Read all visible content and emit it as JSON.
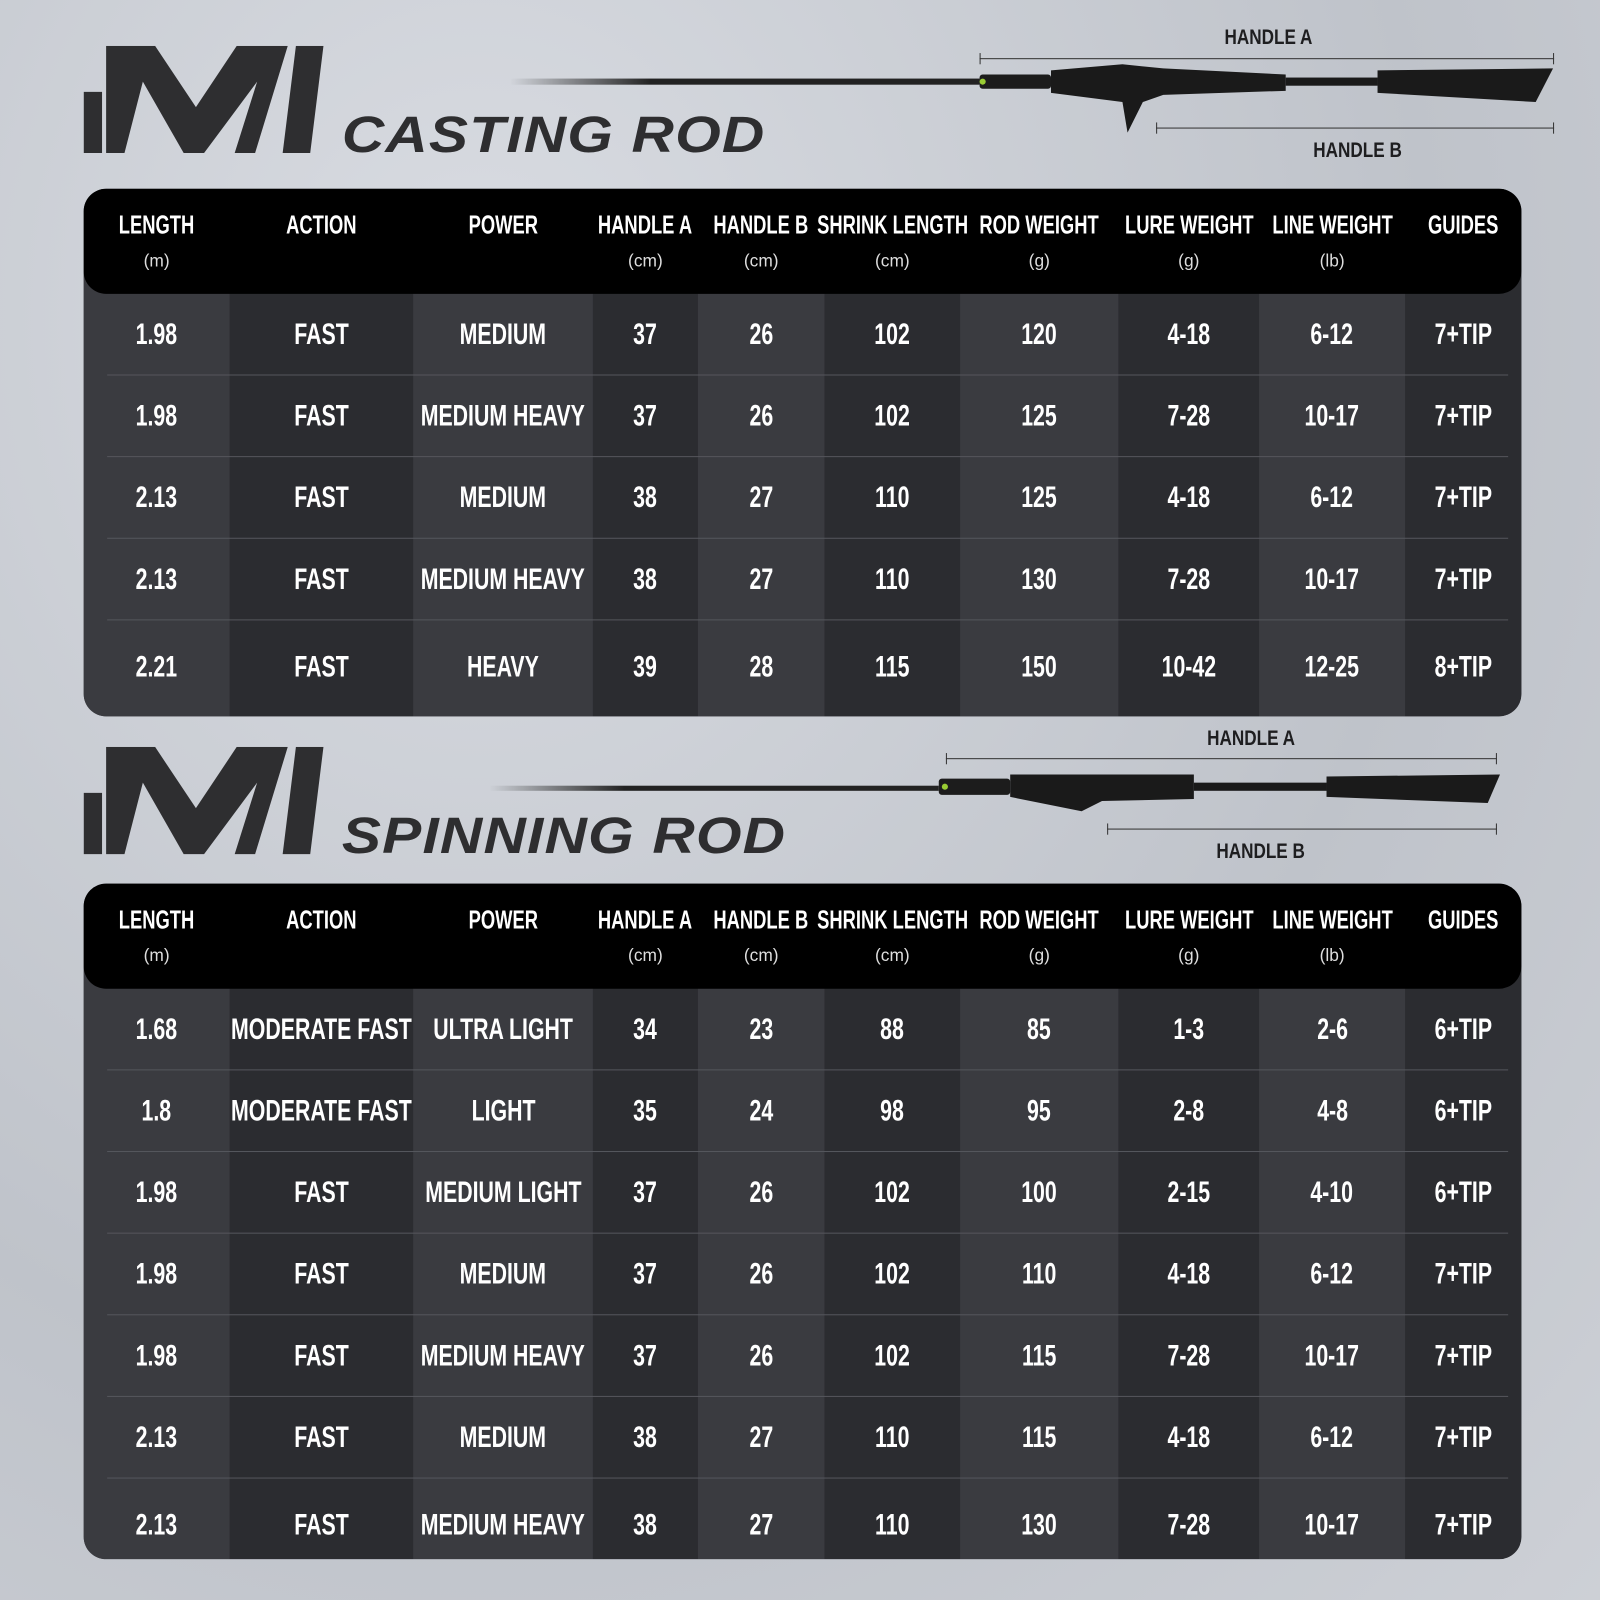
{
  "brand": "MI",
  "colors": {
    "table_bg": "#3a3b40",
    "table_alt": "#2b2c30",
    "header_bg": "#000000",
    "text": "#ffffff",
    "title": "#2e2e30"
  },
  "headers": [
    {
      "label": "LENGTH",
      "unit": "(m)"
    },
    {
      "label": "ACTION",
      "unit": ""
    },
    {
      "label": "POWER",
      "unit": ""
    },
    {
      "label": "HANDLE A",
      "unit": "(cm)"
    },
    {
      "label": "HANDLE B",
      "unit": "(cm)"
    },
    {
      "label": "SHRINK LENGTH",
      "unit": "(cm)"
    },
    {
      "label": "ROD WEIGHT",
      "unit": "(g)"
    },
    {
      "label": "LURE WEIGHT",
      "unit": "(g)"
    },
    {
      "label": "LINE WEIGHT",
      "unit": "(lb)"
    },
    {
      "label": "GUIDES",
      "unit": ""
    }
  ],
  "casting": {
    "title": "CASTING ROD",
    "handle_a": "HANDLE A",
    "handle_b": "HANDLE B",
    "rows": [
      [
        "1.98",
        "FAST",
        "MEDIUM",
        "37",
        "26",
        "102",
        "120",
        "4-18",
        "6-12",
        "7+TIP"
      ],
      [
        "1.98",
        "FAST",
        "MEDIUM HEAVY",
        "37",
        "26",
        "102",
        "125",
        "7-28",
        "10-17",
        "7+TIP"
      ],
      [
        "2.13",
        "FAST",
        "MEDIUM",
        "38",
        "27",
        "110",
        "125",
        "4-18",
        "6-12",
        "7+TIP"
      ],
      [
        "2.13",
        "FAST",
        "MEDIUM HEAVY",
        "38",
        "27",
        "110",
        "130",
        "7-28",
        "10-17",
        "7+TIP"
      ],
      [
        "2.21",
        "FAST",
        "HEAVY",
        "39",
        "28",
        "115",
        "150",
        "10-42",
        "12-25",
        "8+TIP"
      ]
    ]
  },
  "spinning": {
    "title": "SPINNING ROD",
    "handle_a": "HANDLE A",
    "handle_b": "HANDLE B",
    "rows": [
      [
        "1.68",
        "MODERATE FAST",
        "ULTRA LIGHT",
        "34",
        "23",
        "88",
        "85",
        "1-3",
        "2-6",
        "6+TIP"
      ],
      [
        "1.8",
        "MODERATE FAST",
        "LIGHT",
        "35",
        "24",
        "98",
        "95",
        "2-8",
        "4-8",
        "6+TIP"
      ],
      [
        "1.98",
        "FAST",
        "MEDIUM LIGHT",
        "37",
        "26",
        "102",
        "100",
        "2-15",
        "4-10",
        "6+TIP"
      ],
      [
        "1.98",
        "FAST",
        "MEDIUM",
        "37",
        "26",
        "102",
        "110",
        "4-18",
        "6-12",
        "7+TIP"
      ],
      [
        "1.98",
        "FAST",
        "MEDIUM HEAVY",
        "37",
        "26",
        "102",
        "115",
        "7-28",
        "10-17",
        "7+TIP"
      ],
      [
        "2.13",
        "FAST",
        "MEDIUM",
        "38",
        "27",
        "110",
        "115",
        "4-18",
        "6-12",
        "7+TIP"
      ],
      [
        "2.13",
        "FAST",
        "MEDIUM HEAVY",
        "38",
        "27",
        "110",
        "130",
        "7-28",
        "10-17",
        "7+TIP"
      ]
    ]
  }
}
